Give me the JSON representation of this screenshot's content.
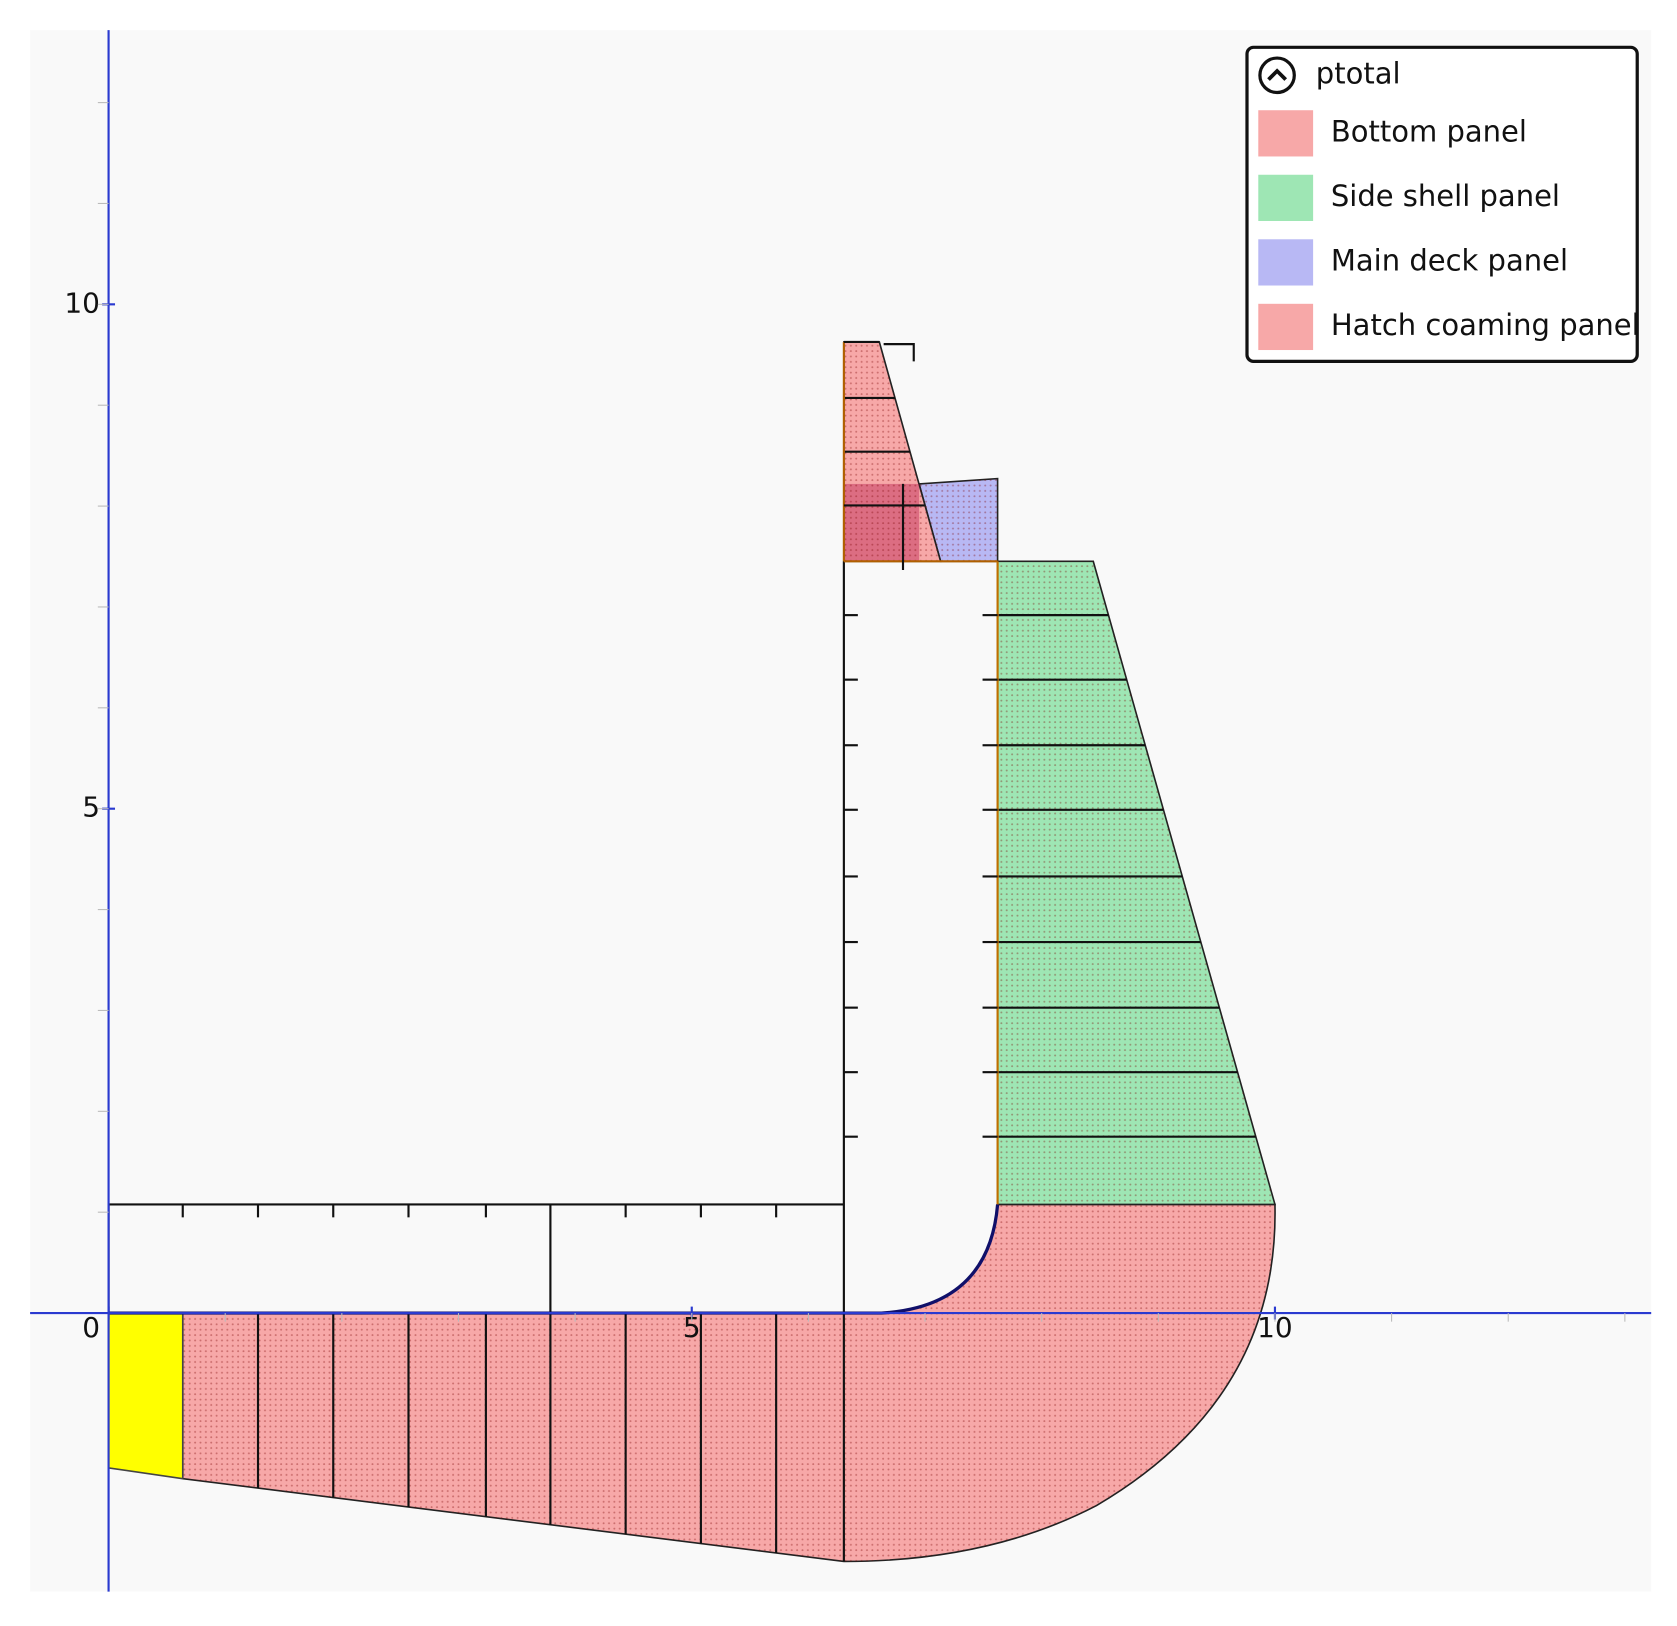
{
  "axes": {
    "xticks": [
      0,
      5,
      10
    ],
    "yticks": [
      5,
      10
    ]
  },
  "legend": {
    "title": "ptotal",
    "items": [
      {
        "label": "Bottom panel",
        "color": "#f7a8a8"
      },
      {
        "label": "Side shell panel",
        "color": "#9ee6b4"
      },
      {
        "label": "Main deck panel",
        "color": "#b8b8f4"
      },
      {
        "label": "Hatch coaming panel",
        "color": "#f7a8a8"
      }
    ]
  }
}
